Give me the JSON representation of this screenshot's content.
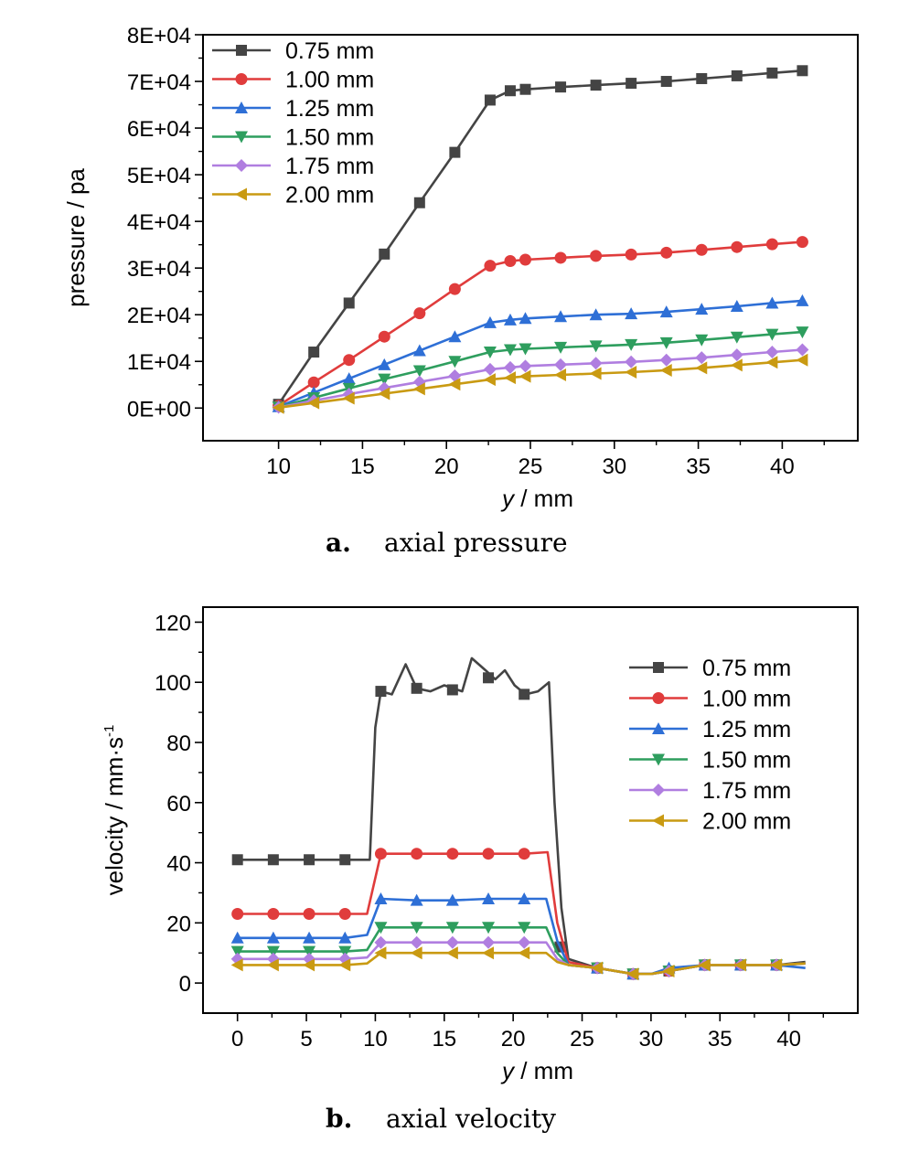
{
  "colors": {
    "0.75 mm": "#444444",
    "1.00 mm": "#e03c3c",
    "1.25 mm": "#2e6fd6",
    "1.50 mm": "#2e9e5e",
    "1.75 mm": "#b07ee0",
    "2.00 mm": "#c99a12"
  },
  "captions": {
    "a_letter": "a.",
    "a_text": "axial pressure",
    "b_letter": "b.",
    "b_text": "axial velocity"
  },
  "chart_data": [
    {
      "type": "line",
      "id": "a",
      "xlabel_italic": "y",
      "xlabel_rest": " / mm",
      "ylabel": "pressure / pa",
      "xlim": [
        5.5,
        44.5
      ],
      "ylim": [
        -7000,
        80000
      ],
      "xticks": [
        10,
        15,
        20,
        25,
        30,
        35,
        40
      ],
      "xtick_labels": [
        "10",
        "15",
        "20",
        "25",
        "30",
        "35",
        "40"
      ],
      "yticks": [
        0,
        10000,
        20000,
        30000,
        40000,
        50000,
        60000,
        70000,
        80000
      ],
      "ytick_labels": [
        "0E+00",
        "1E+04",
        "2E+04",
        "3E+04",
        "4E+04",
        "5E+04",
        "6E+04",
        "7E+04",
        "8E+04"
      ],
      "legend_position": "top-left",
      "series": [
        {
          "name": "0.75 mm",
          "marker": "square",
          "x": [
            10,
            12.1,
            14.2,
            16.3,
            18.4,
            20.5,
            22.6,
            23.8,
            24.7,
            26.8,
            28.9,
            31,
            33.1,
            35.2,
            37.3,
            39.4,
            41.2
          ],
          "y": [
            800,
            12000,
            22500,
            33000,
            44000,
            54800,
            66000,
            68000,
            68300,
            68800,
            69200,
            69600,
            70000,
            70600,
            71200,
            71800,
            72300
          ]
        },
        {
          "name": "1.00 mm",
          "marker": "circle",
          "x": [
            10,
            12.1,
            14.2,
            16.3,
            18.4,
            20.5,
            22.6,
            23.8,
            24.7,
            26.8,
            28.9,
            31,
            33.1,
            35.2,
            37.3,
            39.4,
            41.2
          ],
          "y": [
            500,
            5500,
            10300,
            15300,
            20300,
            25500,
            30500,
            31500,
            31800,
            32200,
            32600,
            32900,
            33300,
            33900,
            34500,
            35100,
            35600
          ]
        },
        {
          "name": "1.25 mm",
          "marker": "triangle-up",
          "x": [
            10,
            12.1,
            14.2,
            16.3,
            18.4,
            20.5,
            22.6,
            23.8,
            24.7,
            26.8,
            28.9,
            31,
            33.1,
            35.2,
            37.3,
            39.4,
            41.2
          ],
          "y": [
            300,
            3300,
            6300,
            9300,
            12300,
            15300,
            18300,
            18900,
            19200,
            19600,
            20000,
            20200,
            20600,
            21200,
            21800,
            22500,
            23000
          ]
        },
        {
          "name": "1.50 mm",
          "marker": "triangle-down",
          "x": [
            10,
            12.1,
            14.2,
            16.3,
            18.4,
            20.5,
            22.6,
            23.8,
            24.7,
            26.8,
            28.9,
            31,
            33.1,
            35.2,
            37.3,
            39.4,
            41.2
          ],
          "y": [
            200,
            2200,
            4200,
            6200,
            8000,
            10000,
            12000,
            12500,
            12700,
            13000,
            13300,
            13600,
            14000,
            14600,
            15200,
            15800,
            16300
          ]
        },
        {
          "name": "1.75 mm",
          "marker": "diamond",
          "x": [
            10,
            12.1,
            14.2,
            16.3,
            18.4,
            20.5,
            22.6,
            23.8,
            24.7,
            26.8,
            28.9,
            31,
            33.1,
            35.2,
            37.3,
            39.4,
            41.2
          ],
          "y": [
            150,
            1600,
            3000,
            4300,
            5600,
            6900,
            8300,
            8700,
            9000,
            9300,
            9600,
            9900,
            10300,
            10800,
            11400,
            12000,
            12500
          ]
        },
        {
          "name": "2.00 mm",
          "marker": "triangle-left",
          "x": [
            10,
            12.1,
            14.2,
            16.3,
            18.4,
            20.5,
            22.6,
            23.8,
            24.7,
            26.8,
            28.9,
            31,
            33.1,
            35.2,
            37.3,
            39.4,
            41.2
          ],
          "y": [
            100,
            1100,
            2100,
            3100,
            4100,
            5100,
            6100,
            6500,
            6800,
            7100,
            7400,
            7700,
            8100,
            8600,
            9200,
            9800,
            10300
          ]
        }
      ]
    },
    {
      "type": "line",
      "id": "b",
      "xlabel_italic": "y",
      "xlabel_rest": " / mm",
      "ylabel": "velocity / mm·s",
      "ylabel_sup": "-1",
      "xlim": [
        -2.5,
        45
      ],
      "ylim": [
        -10,
        125
      ],
      "xticks": [
        0,
        5,
        10,
        15,
        20,
        25,
        30,
        35,
        40
      ],
      "xtick_labels": [
        "0",
        "5",
        "10",
        "15",
        "20",
        "25",
        "30",
        "35",
        "40"
      ],
      "yticks": [
        0,
        20,
        40,
        60,
        80,
        100,
        120
      ],
      "ytick_labels": [
        "0",
        "20",
        "40",
        "60",
        "80",
        "100",
        "120"
      ],
      "legend_position": "top-right",
      "series": [
        {
          "name": "0.75 mm",
          "marker": "square",
          "x": [
            0,
            2.6,
            5.2,
            7.8,
            9.6,
            10.0,
            10.4,
            11.2,
            12.2,
            13,
            14,
            15,
            16.3,
            17,
            18,
            18.7,
            19.4,
            20.1,
            20.9,
            21.8,
            22.6,
            23,
            23.5,
            24,
            26.1,
            28.7,
            30,
            31.3,
            33.9,
            36.5,
            39.1,
            41.2
          ],
          "x_markers": [
            0,
            2.6,
            5.2,
            7.8,
            10.4,
            13,
            15.6,
            18.2,
            20.8,
            23.4,
            26.1,
            28.7,
            31.3,
            33.9,
            36.5,
            39.1
          ],
          "y": [
            41,
            41,
            41,
            41,
            41,
            85,
            97,
            96,
            106,
            98,
            97,
            99,
            97,
            108,
            104,
            101,
            104,
            99,
            96,
            97,
            100,
            60,
            25,
            8,
            5,
            3,
            3,
            4,
            6,
            6,
            6,
            7
          ],
          "y_markers": [
            41,
            41,
            41,
            41,
            97,
            98,
            97.5,
            101.5,
            96,
            12,
            5,
            3,
            4,
            6,
            6,
            6
          ]
        },
        {
          "name": "1.00 mm",
          "marker": "circle",
          "x": [
            0,
            2.6,
            5.2,
            7.8,
            9.4,
            10.4,
            13,
            15.6,
            18.2,
            20.8,
            22.5,
            23.2,
            24,
            26.1,
            28.7,
            30,
            31.3,
            33.9,
            36.5,
            39.1,
            41.2
          ],
          "x_markers": [
            0,
            2.6,
            5.2,
            7.8,
            10.4,
            13,
            15.6,
            18.2,
            20.8,
            26.1,
            28.7,
            31.3,
            33.9,
            36.5,
            39.1
          ],
          "y": [
            23,
            23,
            23,
            23,
            23,
            43,
            43,
            43,
            43,
            43,
            43.5,
            20,
            7,
            5,
            3,
            3,
            4,
            6,
            6,
            6,
            6.5
          ],
          "y_markers": [
            23,
            23,
            23,
            23,
            43,
            43,
            43,
            43,
            43,
            5,
            3,
            4,
            6,
            6,
            6
          ]
        },
        {
          "name": "1.25 mm",
          "marker": "triangle-up",
          "x": [
            0,
            2.6,
            5.2,
            7.8,
            9.4,
            10.4,
            13,
            15.6,
            18.2,
            20.8,
            22.4,
            23.2,
            24,
            26.1,
            28.7,
            30,
            31.3,
            33.9,
            36.5,
            39.1,
            41.2
          ],
          "x_markers": [
            0,
            2.6,
            5.2,
            7.8,
            10.4,
            13,
            15.6,
            18.2,
            20.8,
            26.1,
            28.7,
            31.3,
            33.9,
            36.5,
            39.1
          ],
          "y": [
            15,
            15,
            15,
            15,
            16,
            28,
            27.5,
            27.5,
            28,
            28,
            28,
            14,
            6,
            5,
            3,
            3,
            5,
            6,
            6,
            6,
            5
          ],
          "y_markers": [
            15,
            15,
            15,
            15,
            28,
            27.5,
            27.5,
            28,
            28,
            5,
            3,
            5,
            6,
            6,
            6
          ]
        },
        {
          "name": "1.50 mm",
          "marker": "triangle-down",
          "x": [
            0,
            2.6,
            5.2,
            7.8,
            9.4,
            10.4,
            13,
            15.6,
            18.2,
            20.8,
            22.4,
            23.2,
            24,
            26.1,
            28.7,
            30,
            31.3,
            33.9,
            36.5,
            39.1,
            41.2
          ],
          "x_markers": [
            0,
            2.6,
            5.2,
            7.8,
            10.4,
            13,
            15.6,
            18.2,
            20.8,
            26.1,
            28.7,
            31.3,
            33.9,
            36.5,
            39.1
          ],
          "y": [
            10.5,
            10.5,
            10.5,
            10.5,
            11,
            18.5,
            18.5,
            18.5,
            18.5,
            18.5,
            18.5,
            10,
            6,
            5,
            3,
            3,
            4,
            6,
            6,
            6,
            6.5
          ],
          "y_markers": [
            10.5,
            10.5,
            10.5,
            10.5,
            18.5,
            18.5,
            18.5,
            18.5,
            18.5,
            5,
            3,
            4,
            6,
            6,
            6
          ]
        },
        {
          "name": "1.75 mm",
          "marker": "diamond",
          "x": [
            0,
            2.6,
            5.2,
            7.8,
            9.4,
            10.4,
            13,
            15.6,
            18.2,
            20.8,
            22.4,
            23.2,
            24,
            26.1,
            28.7,
            30,
            31.3,
            33.9,
            36.5,
            39.1,
            41.2
          ],
          "x_markers": [
            0,
            2.6,
            5.2,
            7.8,
            10.4,
            13,
            15.6,
            18.2,
            20.8,
            26.1,
            28.7,
            31.3,
            33.9,
            36.5,
            39.1
          ],
          "y": [
            8,
            8,
            8,
            8,
            8.5,
            13.5,
            13.5,
            13.5,
            13.5,
            13.5,
            13.5,
            8,
            6,
            5,
            3,
            3,
            4,
            6,
            6,
            6,
            6.5
          ],
          "y_markers": [
            8,
            8,
            8,
            8,
            13.5,
            13.5,
            13.5,
            13.5,
            13.5,
            5,
            3,
            4,
            6,
            6,
            6
          ]
        },
        {
          "name": "2.00 mm",
          "marker": "triangle-left",
          "x": [
            0,
            2.6,
            5.2,
            7.8,
            9.4,
            10.4,
            13,
            15.6,
            18.2,
            20.8,
            22.4,
            23.2,
            24,
            26.1,
            28.7,
            30,
            31.3,
            33.9,
            36.5,
            39.1,
            41.2
          ],
          "x_markers": [
            0,
            2.6,
            5.2,
            7.8,
            10.4,
            13,
            15.6,
            18.2,
            20.8,
            26.1,
            28.7,
            31.3,
            33.9,
            36.5,
            39.1
          ],
          "y": [
            6,
            6,
            6,
            6,
            6.5,
            10,
            10,
            10,
            10,
            10,
            10,
            7,
            6,
            5,
            3,
            3,
            4,
            6,
            6,
            6,
            6.5
          ],
          "y_markers": [
            6,
            6,
            6,
            6,
            10,
            10,
            10,
            10,
            10,
            5,
            3,
            4,
            6,
            6,
            6
          ]
        }
      ]
    }
  ]
}
